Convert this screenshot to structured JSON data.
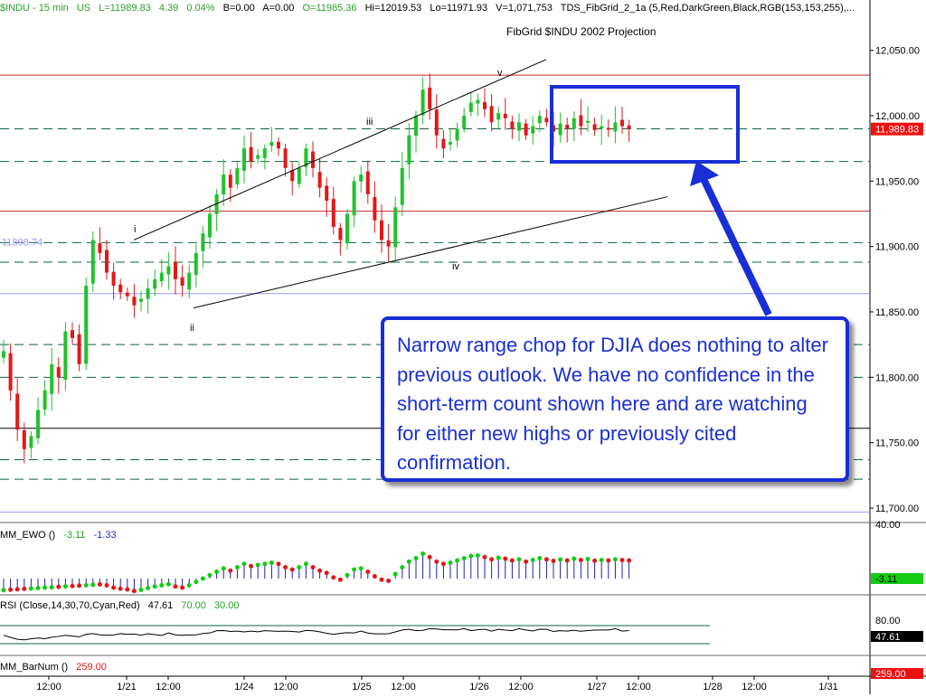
{
  "header": {
    "symbol": "$INDU - 15 min",
    "region": "US",
    "last": "L=11989.83",
    "change": "4.39",
    "change_pct": "0.04%",
    "bid": "B=0.00",
    "ask": "A=0.00",
    "open": "O=11985.36",
    "high": "Hi=12019.53",
    "low": "Lo=11971.93",
    "volume": "V=1,071,753",
    "study": "TDS_FibGrid_2_1a (5,Red,DarkGreen,Black,RGB(153,153,255),..."
  },
  "subtitle": "FibGrid $INDU 2002 Projection",
  "wave_labels": {
    "i": "i",
    "ii": "ii",
    "iii": "iii",
    "iv": "iv",
    "v": "v"
  },
  "fib_left_label": "11898.74",
  "last_price_tag": "11,989.83",
  "callout_text": "Narrow range chop for DJIA does nothing to alter previous outlook.  We have no confidence in the short-term count shown here and are watching for either new highs or previously cited confirmation.",
  "indicators": {
    "ewo": {
      "name": "MM_EWO ()",
      "v1": "-3.11",
      "v2": "-1.33",
      "axis_label": "40.00",
      "tag": "-3.11"
    },
    "rsi": {
      "name": "RSI (Close,14,30,70,Cyan,Red)",
      "v1": "47.61",
      "v2": "70.00",
      "v3": "30.00",
      "axis_label": "80.00",
      "tag": "47.61"
    },
    "barnum": {
      "name": "MM_BarNum ()",
      "v1": "259.00",
      "tag": "259.00"
    }
  },
  "colors": {
    "up": "#22c22c",
    "down": "#e01818",
    "callout": "#1a2ed6",
    "fib_red": "#c8282a",
    "fib_green": "#116044",
    "fib_black": "#000000",
    "fib_purple": "#9999ff",
    "tag_red": "#ee1111",
    "tag_green": "#11cc11"
  },
  "chart_data": {
    "type": "candlestick",
    "title": "FibGrid $INDU 2002 Projection",
    "y_ticks": [
      12050,
      12000,
      11950,
      11900,
      11850,
      11800,
      11750,
      11700
    ],
    "y_tick_labels": [
      "12,050.00",
      "12,000.00",
      "11,950.00",
      "11,900.00",
      "11,850.00",
      "11,800.00",
      "11,750.00",
      "11,700.00"
    ],
    "ylim": [
      11680,
      12090
    ],
    "x_tick_labels": [
      "12:00",
      "1/21",
      "12:00",
      "1/24",
      "12:00",
      "1/25",
      "12:00",
      "1/26",
      "12:00",
      "1/27",
      "12:00",
      "1/28",
      "12:00",
      "1/31"
    ],
    "fib_levels": [
      {
        "price": 12031,
        "color": "red",
        "style": "solid"
      },
      {
        "price": 11990,
        "color": "green",
        "style": "dashed"
      },
      {
        "price": 11965,
        "color": "green",
        "style": "dashed"
      },
      {
        "price": 11927,
        "color": "red",
        "style": "solid"
      },
      {
        "price": 11903,
        "color": "green",
        "style": "dashed"
      },
      {
        "price": 11888,
        "color": "green",
        "style": "dashed"
      },
      {
        "price": 11864,
        "color": "purple",
        "style": "solid"
      },
      {
        "price": 11825,
        "color": "green",
        "style": "dashed"
      },
      {
        "price": 11800,
        "color": "green",
        "style": "dashed"
      },
      {
        "price": 11761,
        "color": "black",
        "style": "solid"
      },
      {
        "price": 11737,
        "color": "green",
        "style": "dashed"
      },
      {
        "price": 11722,
        "color": "green",
        "style": "dashed"
      },
      {
        "price": 11697,
        "color": "purple",
        "style": "solid"
      }
    ],
    "candle_path": [
      11820,
      11790,
      11760,
      11745,
      11755,
      11775,
      11790,
      11810,
      11800,
      11835,
      11830,
      11810,
      11870,
      11905,
      11895,
      11880,
      11870,
      11865,
      11862,
      11855,
      11860,
      11868,
      11875,
      11880,
      11885,
      11875,
      11870,
      11880,
      11895,
      11910,
      11925,
      11940,
      11955,
      11945,
      11960,
      11975,
      11965,
      11970,
      11975,
      11980,
      11975,
      11960,
      11950,
      11960,
      11975,
      11960,
      11945,
      11935,
      11915,
      11905,
      11925,
      11950,
      11955,
      11940,
      11920,
      11905,
      11900,
      11930,
      11960,
      11985,
      12000,
      12020,
      12005,
      11985,
      11975,
      11980,
      11990,
      12000,
      12010,
      12012,
      12005,
      11995,
      12002,
      11998,
      11990,
      11995,
      11985,
      11992,
      12000,
      11995,
      11988,
      11994,
      11990,
      11998,
      11992,
      11996,
      11989,
      11992,
      11990,
      11995,
      11992,
      11990
    ],
    "trend_lines": [
      {
        "from": [
          "i",
          11905
        ],
        "to": [
          "v-end",
          12043
        ]
      },
      {
        "from": [
          "ii",
          11853
        ],
        "to": [
          "proj-end",
          11938
        ]
      }
    ],
    "ewo": {
      "ylim": [
        -20,
        50
      ]
    },
    "rsi": {
      "levels": [
        70,
        30
      ]
    }
  }
}
